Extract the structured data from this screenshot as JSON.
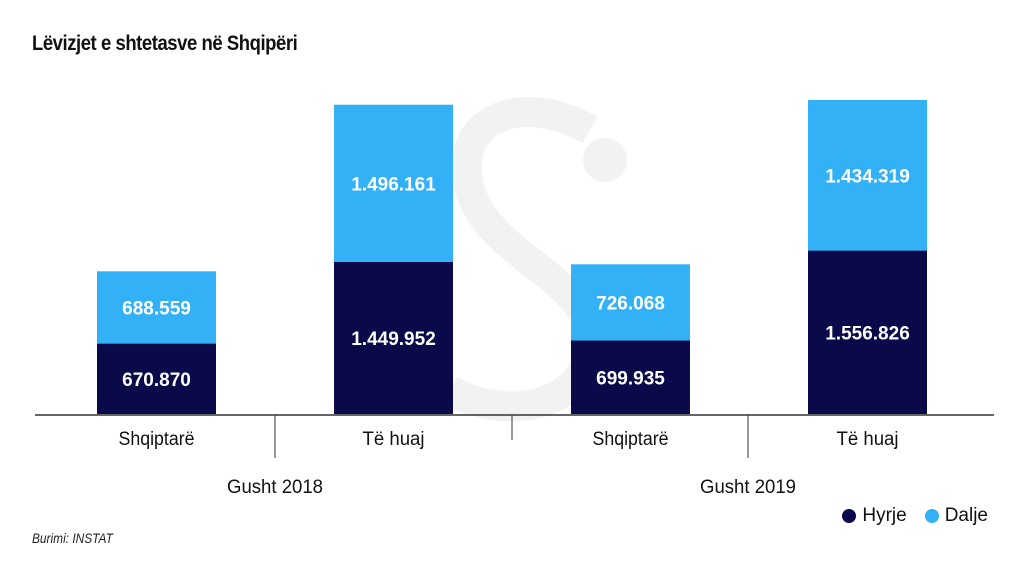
{
  "chart_data": {
    "type": "bar",
    "stacked": true,
    "title": "Lëvizjet e shtetasve në Shqipëri",
    "categories": [
      "Shqiptarë",
      "Të huaj",
      "Shqiptarë",
      "Të huaj"
    ],
    "groups": [
      {
        "label": "Gusht 2018",
        "categories": [
          "Shqiptarë",
          "Të huaj"
        ]
      },
      {
        "label": "Gusht 2019",
        "categories": [
          "Shqiptarë",
          "Të huaj"
        ]
      }
    ],
    "series": [
      {
        "name": "Hyrje",
        "color": "#0a0a4a",
        "values": [
          670870,
          1449952,
          699935,
          1556826
        ],
        "labels": [
          "670.870",
          "1.449.952",
          "699.935",
          "1.556.826"
        ]
      },
      {
        "name": "Dalje",
        "color": "#33b1f7",
        "values": [
          688559,
          1496161,
          726068,
          1434319
        ],
        "labels": [
          "688.559",
          "1.496.161",
          "726.068",
          "1.434.319"
        ]
      }
    ],
    "legend_position": "bottom-right",
    "grid": false,
    "source": "Burimi: INSTAT"
  }
}
